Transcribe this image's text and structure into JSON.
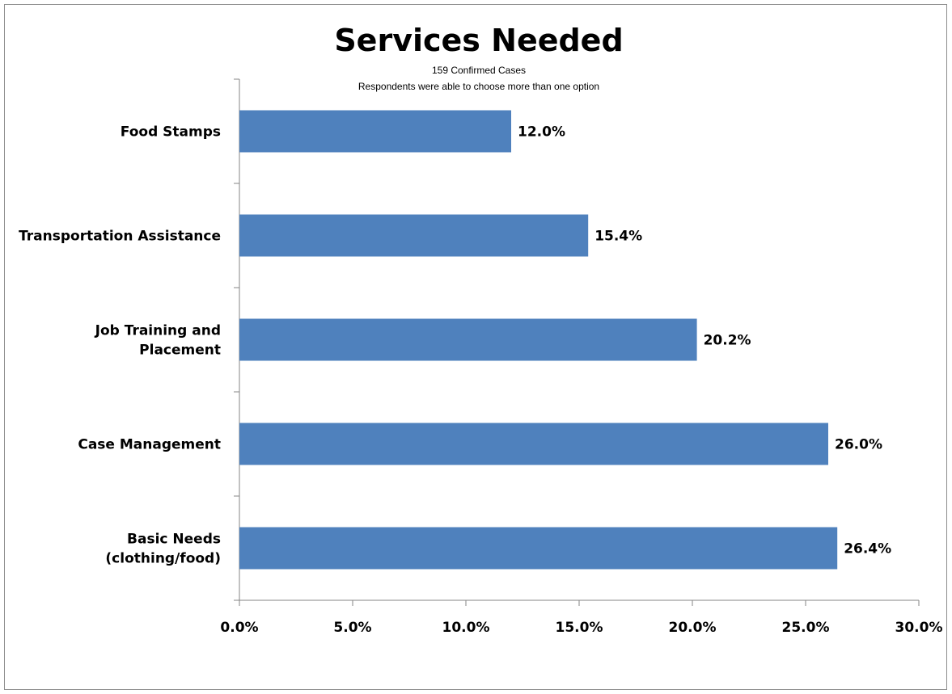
{
  "chart_data": {
    "type": "bar",
    "orientation": "horizontal",
    "title": "Services Needed",
    "subtitle_lines": [
      "159 Confirmed Cases",
      "Respondents were able to choose more than one option"
    ],
    "categories": [
      [
        "Food Stamps"
      ],
      [
        "Transportation Assistance"
      ],
      [
        "Job Training and",
        "Placement"
      ],
      [
        "Case Management"
      ],
      [
        "Basic Needs",
        "(clothing/food)"
      ]
    ],
    "values": [
      12.0,
      15.4,
      20.2,
      26.0,
      26.4
    ],
    "data_labels": [
      "12.0%",
      "15.4%",
      "20.2%",
      "26.0%",
      "26.4%"
    ],
    "xlim": [
      0,
      30
    ],
    "x_ticks": [
      0,
      5,
      10,
      15,
      20,
      25,
      30
    ],
    "x_tick_labels": [
      "0.0%",
      "5.0%",
      "10.0%",
      "15.0%",
      "20.0%",
      "25.0%",
      "30.0%"
    ],
    "bar_color": "#4f81bd",
    "grid": false,
    "legend": "none",
    "xlabel": "",
    "ylabel": ""
  }
}
